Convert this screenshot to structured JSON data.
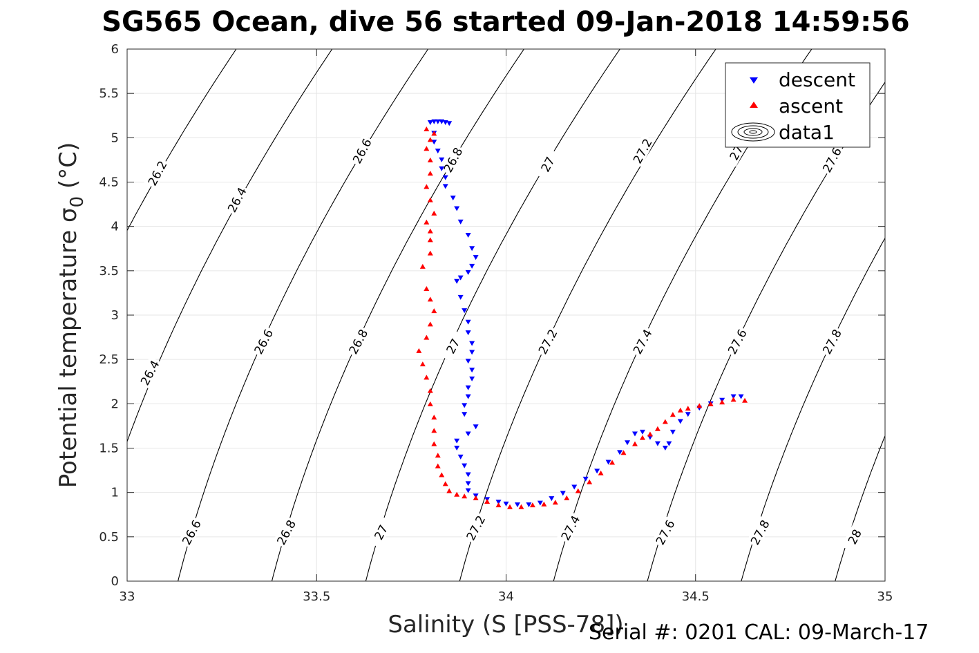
{
  "title": "SG565 Ocean, dive 56 started 09-Jan-2018 14:59:56",
  "footer": "Serial #: 0201  CAL: 09-March-17",
  "chart_data": {
    "type": "scatter",
    "title": "SG565 Ocean, dive 56 started 09-Jan-2018 14:59:56",
    "xlabel": "Salinity (S [PSS-78])",
    "ylabel_main": "Potential temperature",
    "ylabel_sym": "σ",
    "ylabel_sub": "0",
    "ylabel_unit": "(°C)",
    "xlim": [
      33,
      35
    ],
    "ylim": [
      0,
      6
    ],
    "xticks": [
      33,
      33.5,
      34,
      34.5,
      35
    ],
    "xtick_labels": [
      "33",
      "33.5",
      "34",
      "34.5",
      "35"
    ],
    "yticks": [
      0,
      0.5,
      1,
      1.5,
      2,
      2.5,
      3,
      3.5,
      4,
      4.5,
      5,
      5.5,
      6
    ],
    "ytick_labels": [
      "0",
      "0.5",
      "1",
      "1.5",
      "2",
      "2.5",
      "3",
      "3.5",
      "4",
      "4.5",
      "5",
      "5.5",
      "6"
    ],
    "grid": true,
    "legend": {
      "placement": "top-right",
      "entries": [
        "descent",
        "ascent",
        "data1"
      ]
    },
    "series": [
      {
        "name": "descent",
        "marker": "down-triangle",
        "color": "#0000ff",
        "points": [
          [
            33.8,
            5.17
          ],
          [
            33.81,
            5.18
          ],
          [
            33.82,
            5.18
          ],
          [
            33.83,
            5.18
          ],
          [
            33.84,
            5.17
          ],
          [
            33.85,
            5.16
          ],
          [
            33.81,
            5.05
          ],
          [
            33.81,
            4.95
          ],
          [
            33.82,
            4.85
          ],
          [
            33.83,
            4.75
          ],
          [
            33.83,
            4.65
          ],
          [
            33.84,
            4.55
          ],
          [
            33.84,
            4.45
          ],
          [
            33.86,
            4.32
          ],
          [
            33.87,
            4.2
          ],
          [
            33.88,
            4.05
          ],
          [
            33.9,
            3.9
          ],
          [
            33.91,
            3.75
          ],
          [
            33.92,
            3.65
          ],
          [
            33.91,
            3.55
          ],
          [
            33.9,
            3.48
          ],
          [
            33.88,
            3.42
          ],
          [
            33.87,
            3.38
          ],
          [
            33.88,
            3.2
          ],
          [
            33.89,
            3.05
          ],
          [
            33.9,
            2.92
          ],
          [
            33.9,
            2.8
          ],
          [
            33.91,
            2.68
          ],
          [
            33.91,
            2.58
          ],
          [
            33.9,
            2.48
          ],
          [
            33.91,
            2.38
          ],
          [
            33.91,
            2.28
          ],
          [
            33.9,
            2.18
          ],
          [
            33.9,
            2.08
          ],
          [
            33.89,
            1.98
          ],
          [
            33.89,
            1.88
          ],
          [
            33.92,
            1.74
          ],
          [
            33.9,
            1.66
          ],
          [
            33.87,
            1.58
          ],
          [
            33.87,
            1.5
          ],
          [
            33.88,
            1.4
          ],
          [
            33.89,
            1.3
          ],
          [
            33.9,
            1.2
          ],
          [
            33.9,
            1.1
          ],
          [
            33.9,
            1.02
          ],
          [
            33.92,
            0.96
          ],
          [
            33.95,
            0.92
          ],
          [
            33.98,
            0.89
          ],
          [
            34.0,
            0.87
          ],
          [
            34.03,
            0.86
          ],
          [
            34.06,
            0.86
          ],
          [
            34.09,
            0.88
          ],
          [
            34.12,
            0.93
          ],
          [
            34.15,
            0.99
          ],
          [
            34.18,
            1.06
          ],
          [
            34.21,
            1.15
          ],
          [
            34.24,
            1.24
          ],
          [
            34.27,
            1.34
          ],
          [
            34.3,
            1.45
          ],
          [
            34.32,
            1.56
          ],
          [
            34.34,
            1.66
          ],
          [
            34.36,
            1.68
          ],
          [
            34.38,
            1.62
          ],
          [
            34.4,
            1.55
          ],
          [
            34.42,
            1.5
          ],
          [
            34.43,
            1.55
          ],
          [
            34.44,
            1.68
          ],
          [
            34.46,
            1.8
          ],
          [
            34.48,
            1.88
          ],
          [
            34.51,
            1.95
          ],
          [
            34.54,
            2.0
          ],
          [
            34.57,
            2.04
          ],
          [
            34.6,
            2.08
          ],
          [
            34.62,
            2.08
          ]
        ]
      },
      {
        "name": "ascent",
        "marker": "up-triangle",
        "color": "#ff0000",
        "points": [
          [
            34.63,
            2.04
          ],
          [
            34.6,
            2.05
          ],
          [
            34.57,
            2.02
          ],
          [
            34.54,
            2.0
          ],
          [
            34.51,
            1.98
          ],
          [
            34.48,
            1.95
          ],
          [
            34.46,
            1.93
          ],
          [
            34.44,
            1.88
          ],
          [
            34.42,
            1.8
          ],
          [
            34.4,
            1.72
          ],
          [
            34.38,
            1.66
          ],
          [
            34.36,
            1.62
          ],
          [
            34.34,
            1.55
          ],
          [
            34.31,
            1.45
          ],
          [
            34.28,
            1.34
          ],
          [
            34.25,
            1.22
          ],
          [
            34.22,
            1.12
          ],
          [
            34.19,
            1.02
          ],
          [
            34.16,
            0.94
          ],
          [
            34.13,
            0.89
          ],
          [
            34.1,
            0.87
          ],
          [
            34.07,
            0.86
          ],
          [
            34.04,
            0.84
          ],
          [
            34.01,
            0.84
          ],
          [
            33.98,
            0.86
          ],
          [
            33.95,
            0.9
          ],
          [
            33.92,
            0.94
          ],
          [
            33.89,
            0.96
          ],
          [
            33.87,
            0.98
          ],
          [
            33.85,
            1.02
          ],
          [
            33.84,
            1.1
          ],
          [
            33.83,
            1.2
          ],
          [
            33.82,
            1.3
          ],
          [
            33.82,
            1.42
          ],
          [
            33.81,
            1.55
          ],
          [
            33.81,
            1.7
          ],
          [
            33.81,
            1.85
          ],
          [
            33.8,
            2.0
          ],
          [
            33.8,
            2.15
          ],
          [
            33.79,
            2.3
          ],
          [
            33.78,
            2.45
          ],
          [
            33.77,
            2.6
          ],
          [
            33.79,
            2.75
          ],
          [
            33.8,
            2.9
          ],
          [
            33.81,
            3.05
          ],
          [
            33.8,
            3.18
          ],
          [
            33.79,
            3.3
          ],
          [
            33.78,
            3.55
          ],
          [
            33.8,
            3.7
          ],
          [
            33.8,
            3.85
          ],
          [
            33.8,
            3.95
          ],
          [
            33.79,
            4.05
          ],
          [
            33.81,
            4.15
          ],
          [
            33.8,
            4.3
          ],
          [
            33.79,
            4.45
          ],
          [
            33.8,
            4.6
          ],
          [
            33.8,
            4.75
          ],
          [
            33.79,
            4.88
          ],
          [
            33.8,
            4.98
          ],
          [
            33.81,
            5.05
          ],
          [
            33.79,
            5.1
          ]
        ]
      }
    ],
    "density_contours": {
      "levels": [
        26.2,
        26.4,
        26.6,
        26.8,
        27,
        27.2,
        27.4,
        27.6,
        27.8,
        28
      ],
      "color": "#000000",
      "labels": [
        {
          "text": "26.2",
          "s": 33.08,
          "t": 4.6
        },
        {
          "text": "26.4",
          "s": 33.29,
          "t": 4.3
        },
        {
          "text": "26.6",
          "s": 33.62,
          "t": 4.85
        },
        {
          "text": "26.8",
          "s": 33.86,
          "t": 4.75
        },
        {
          "text": "27",
          "s": 34.11,
          "t": 4.7
        },
        {
          "text": "27.2",
          "s": 34.36,
          "t": 4.85
        },
        {
          "text": "27.",
          "s": 34.61,
          "t": 4.85
        },
        {
          "text": "27.6",
          "s": 34.86,
          "t": 4.75
        },
        {
          "text": "26.4",
          "s": 33.06,
          "t": 2.35
        },
        {
          "text": "26.6",
          "s": 33.36,
          "t": 2.7
        },
        {
          "text": "26.8",
          "s": 33.61,
          "t": 2.7
        },
        {
          "text": "27",
          "s": 33.86,
          "t": 2.65
        },
        {
          "text": "27.2",
          "s": 34.11,
          "t": 2.7
        },
        {
          "text": "27.4",
          "s": 34.36,
          "t": 2.7
        },
        {
          "text": "27.6",
          "s": 34.61,
          "t": 2.7
        },
        {
          "text": "27.8",
          "s": 34.86,
          "t": 2.7
        },
        {
          "text": "26.6",
          "s": 33.17,
          "t": 0.55
        },
        {
          "text": "26.8",
          "s": 33.42,
          "t": 0.55
        },
        {
          "text": "27",
          "s": 33.67,
          "t": 0.55
        },
        {
          "text": "27.2",
          "s": 33.92,
          "t": 0.6
        },
        {
          "text": "27.4",
          "s": 34.17,
          "t": 0.6
        },
        {
          "text": "27.6",
          "s": 34.42,
          "t": 0.55
        },
        {
          "text": "27.8",
          "s": 34.67,
          "t": 0.55
        },
        {
          "text": "28",
          "s": 34.92,
          "t": 0.5
        }
      ]
    }
  }
}
